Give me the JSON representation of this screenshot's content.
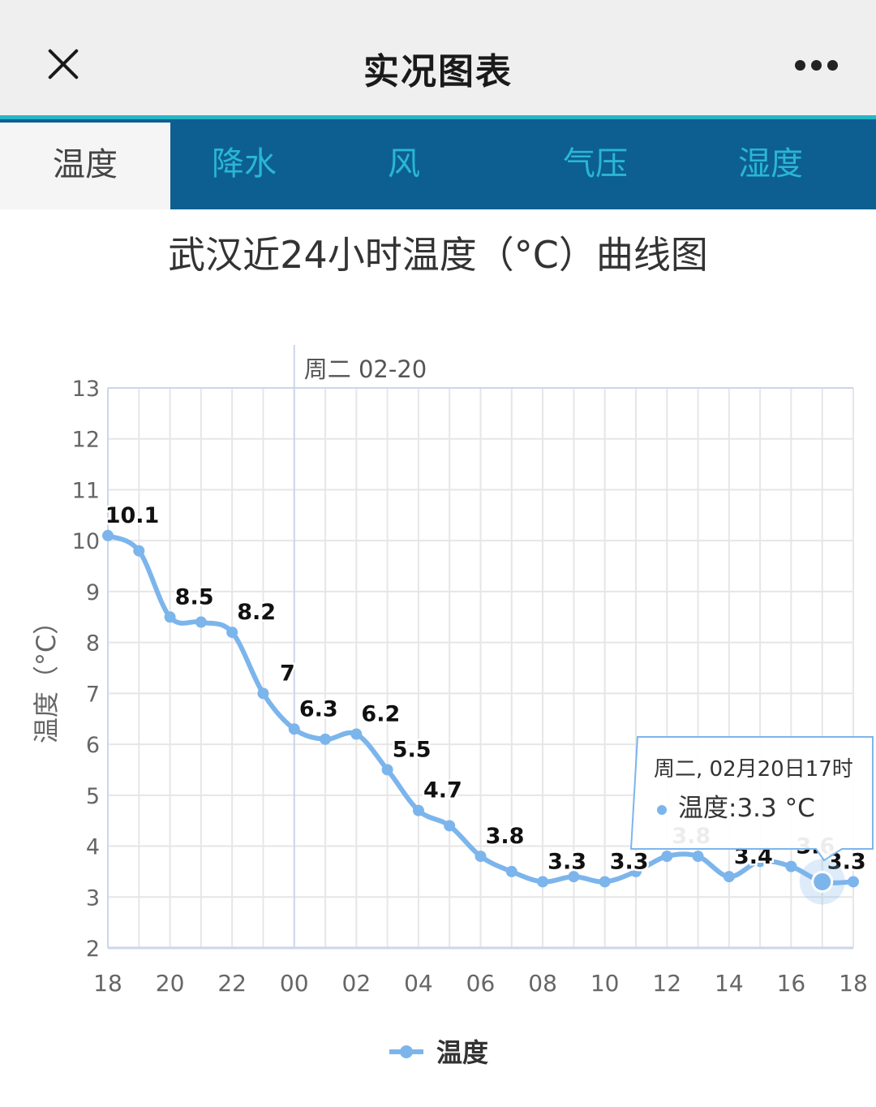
{
  "header": {
    "title": "实况图表",
    "close_icon": "close-icon",
    "more_icon": "more-dots-icon"
  },
  "tabs": [
    {
      "label": "温度",
      "active": true
    },
    {
      "label": "降水",
      "active": false
    },
    {
      "label": "风",
      "active": false
    },
    {
      "label": "气压",
      "active": false
    },
    {
      "label": "湿度",
      "active": false
    }
  ],
  "colors": {
    "series": "#7cb5ec",
    "tab_bar": "#0d5f91",
    "tab_text": "#2ab6d4",
    "tab_accent": "#26b6c7"
  },
  "chart_data": {
    "type": "line",
    "title": "武汉近24小时温度（°C）曲线图",
    "ylabel": "温度（°C）",
    "ylim": [
      2,
      13
    ],
    "yticks": [
      2,
      3,
      4,
      5,
      6,
      7,
      8,
      9,
      10,
      11,
      12,
      13
    ],
    "xticklabels": [
      "18",
      "20",
      "22",
      "00",
      "02",
      "04",
      "06",
      "08",
      "10",
      "12",
      "14",
      "16",
      "18"
    ],
    "date_marker": "周二 02-20",
    "grid": true,
    "legend_position": "bottom-center",
    "series": [
      {
        "name": "温度",
        "x": [
          "18",
          "19",
          "20",
          "21",
          "22",
          "23",
          "00",
          "01",
          "02",
          "03",
          "04",
          "05",
          "06",
          "07",
          "08",
          "09",
          "10",
          "11",
          "12",
          "13",
          "14",
          "15",
          "16",
          "17",
          "18"
        ],
        "values": [
          10.1,
          9.8,
          8.5,
          8.4,
          8.2,
          7,
          6.3,
          6.1,
          6.2,
          5.5,
          4.7,
          4.4,
          3.8,
          3.5,
          3.3,
          3.4,
          3.3,
          3.5,
          3.8,
          3.8,
          3.4,
          3.7,
          3.6,
          3.3,
          3.3
        ],
        "data_labels": [
          "10.1",
          "",
          "8.5",
          "",
          "8.2",
          "7",
          "6.3",
          "",
          "6.2",
          "5.5",
          "4.7",
          "",
          "3.8",
          "",
          "3.3",
          "",
          "3.3",
          "",
          "3.8",
          "",
          "3.4",
          "",
          "3.6",
          "3.3",
          ""
        ]
      }
    ],
    "tooltip": {
      "point_index": 23,
      "title": "周二, 02月20日17时",
      "text": "温度:3.3 °C"
    }
  }
}
